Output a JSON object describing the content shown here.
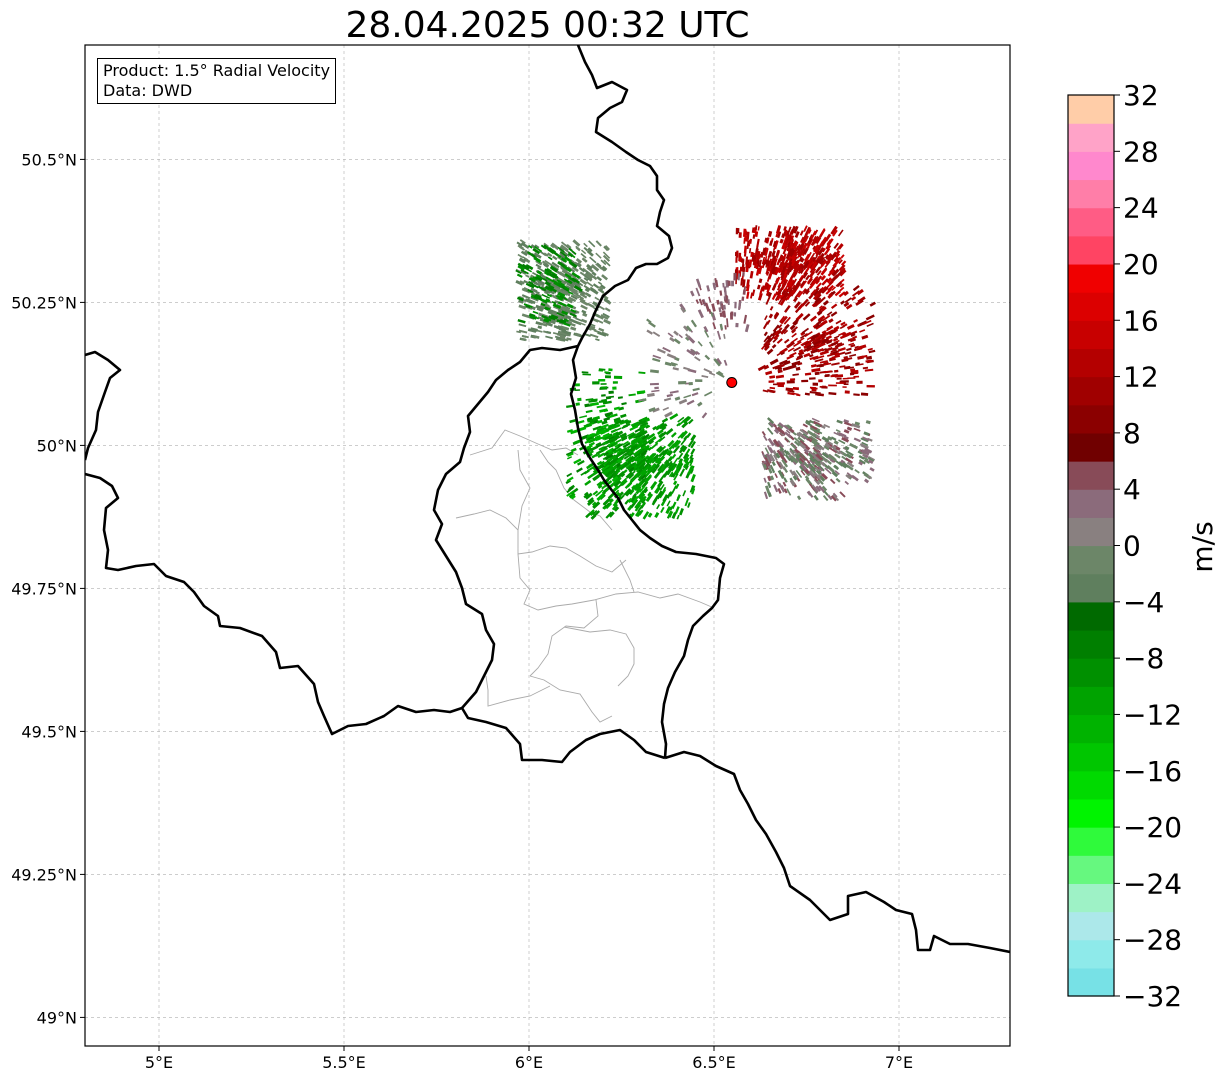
{
  "title": "28.04.2025 00:32 UTC",
  "info_box": {
    "product": "Product: 1.5° Radial Velocity",
    "data_source": "Data: DWD"
  },
  "map": {
    "lon_range": [
      4.8,
      7.3
    ],
    "lat_range": [
      48.95,
      50.7
    ],
    "lon_ticks": [
      {
        "value": 5.0,
        "label": "5°E"
      },
      {
        "value": 5.5,
        "label": "5.5°E"
      },
      {
        "value": 6.0,
        "label": "6°E"
      },
      {
        "value": 6.5,
        "label": "6.5°E"
      },
      {
        "value": 7.0,
        "label": "7°E"
      }
    ],
    "lat_ticks": [
      {
        "value": 50.5,
        "label": "50.5°N"
      },
      {
        "value": 50.25,
        "label": "50.25°N"
      },
      {
        "value": 50.0,
        "label": "50°N"
      },
      {
        "value": 49.75,
        "label": "49.75°N"
      },
      {
        "value": 49.5,
        "label": "49.5°N"
      },
      {
        "value": 49.25,
        "label": "49.25°N"
      },
      {
        "value": 49.0,
        "label": "49°N"
      }
    ],
    "radar_site": {
      "lon": 6.548,
      "lat": 50.11,
      "color": "#ff0000"
    },
    "border_color": "#000000",
    "admin_border_color": "#aaaaaa",
    "grid": true
  },
  "colorbar": {
    "label": "m/s",
    "min": -32,
    "max": 32,
    "step": 2,
    "tick_labels": [
      "32",
      "28",
      "24",
      "20",
      "16",
      "12",
      "8",
      "4",
      "0",
      "−4",
      "−8",
      "−12",
      "−16",
      "−20",
      "−24",
      "−28",
      "−32"
    ],
    "colors": [
      "#77e1e6",
      "#8eeaea",
      "#ace8ea",
      "#9ef2c6",
      "#66f87f",
      "#2ffa3b",
      "#00f400",
      "#00da00",
      "#00c600",
      "#00b300",
      "#00a300",
      "#009000",
      "#007f00",
      "#006a00",
      "#5f7f5e",
      "#6c8668",
      "#898080",
      "#8b6b7b",
      "#884b58",
      "#700000",
      "#8b0000",
      "#a00000",
      "#b40000",
      "#c80000",
      "#dc0000",
      "#f00000",
      "#ff4463",
      "#ff5c85",
      "#ff7ea8",
      "#ff88cd",
      "#ffa3c8",
      "#ffcda8"
    ]
  }
}
